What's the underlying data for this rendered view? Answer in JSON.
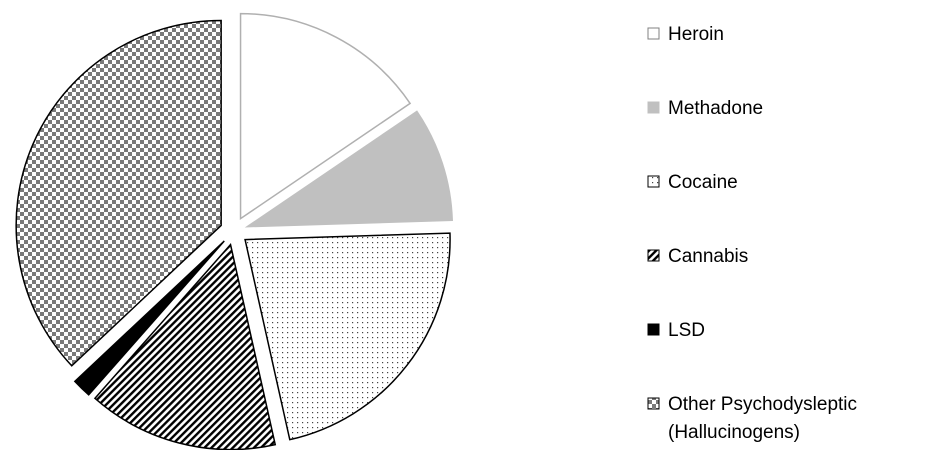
{
  "chart_data": {
    "type": "pie",
    "exploded": true,
    "legend_position": "right",
    "slices": [
      {
        "label": "Heroin",
        "value": 15.5,
        "fill": "#ffffff",
        "stroke": "#b0b0b0",
        "pattern": "none"
      },
      {
        "label": "Methadone",
        "value": 9.0,
        "fill": "#c0c0c0",
        "stroke": "#c0c0c0",
        "pattern": "solid"
      },
      {
        "label": "Cocaine",
        "value": 22.0,
        "fill": "#ffffff",
        "stroke": "#000000",
        "pattern": "dots"
      },
      {
        "label": "Cannabis",
        "value": 15.0,
        "fill": "#ffffff",
        "stroke": "#000000",
        "pattern": "diagonal-stripes"
      },
      {
        "label": "LSD",
        "value": 1.5,
        "fill": "#000000",
        "stroke": "#000000",
        "pattern": "solid"
      },
      {
        "label": "Other Psychodysleptic (Hallucinogens)",
        "label_lines": [
          "Other Psychodysleptic",
          "(Hallucinogens)"
        ],
        "value": 37.0,
        "fill": "#ffffff",
        "stroke": "#000000",
        "pattern": "checker"
      }
    ]
  }
}
